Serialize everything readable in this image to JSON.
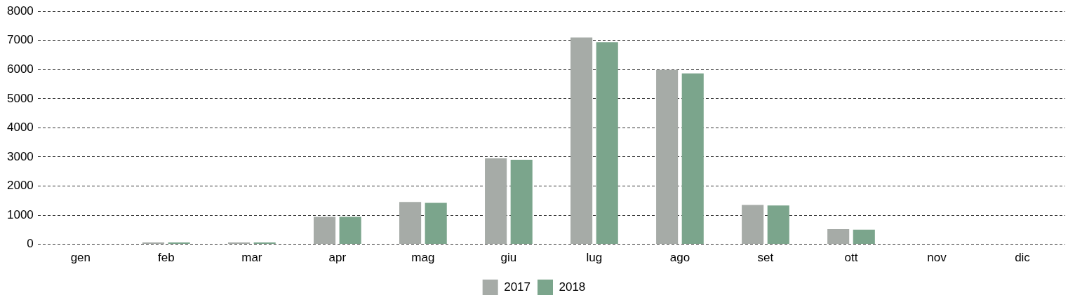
{
  "chart_data": {
    "type": "bar",
    "categories": [
      "gen",
      "feb",
      "mar",
      "apr",
      "mag",
      "giu",
      "lug",
      "ago",
      "set",
      "ott",
      "nov",
      "dic"
    ],
    "series": [
      {
        "name": "2017",
        "color": "#a6aba7",
        "values": [
          0,
          60,
          60,
          940,
          1450,
          2950,
          7100,
          5990,
          1350,
          520,
          0,
          0
        ]
      },
      {
        "name": "2018",
        "color": "#7ba58c",
        "values": [
          0,
          60,
          60,
          940,
          1420,
          2900,
          6940,
          5870,
          1330,
          500,
          0,
          0
        ]
      }
    ],
    "ylim": [
      0,
      8000
    ],
    "yticks": [
      0,
      1000,
      2000,
      3000,
      4000,
      5000,
      6000,
      7000,
      8000
    ],
    "grid": "y",
    "line_style": "dashed",
    "legend": "bottom"
  }
}
